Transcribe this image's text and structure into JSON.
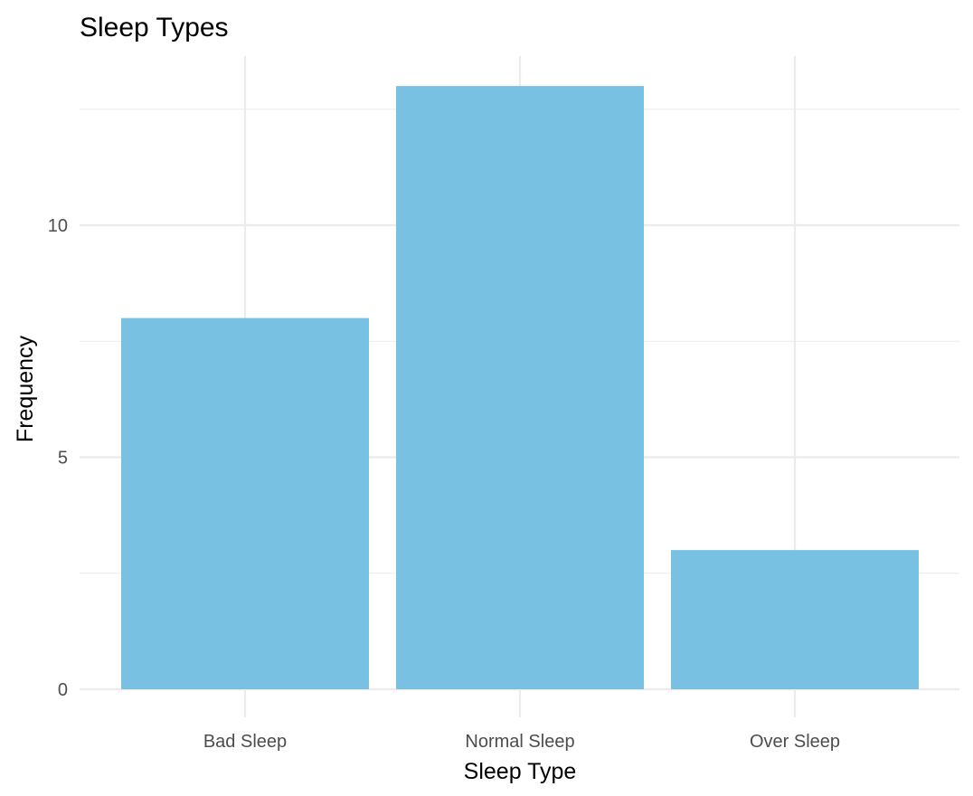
{
  "chart_data": {
    "type": "bar",
    "title": "Sleep Types",
    "xlabel": "Sleep Type",
    "ylabel": "Frequency",
    "categories": [
      "Bad Sleep",
      "Normal Sleep",
      "Over Sleep"
    ],
    "values": [
      8,
      13,
      3
    ],
    "ylim": [
      0,
      13.65
    ],
    "yticks": [
      0,
      5,
      10
    ],
    "ytick_labels": [
      "0",
      "5",
      "10"
    ],
    "minor_yticks": [
      2.5,
      7.5,
      12.5
    ],
    "grid": true,
    "legend": "none",
    "bar_color": "#78c1e3"
  }
}
